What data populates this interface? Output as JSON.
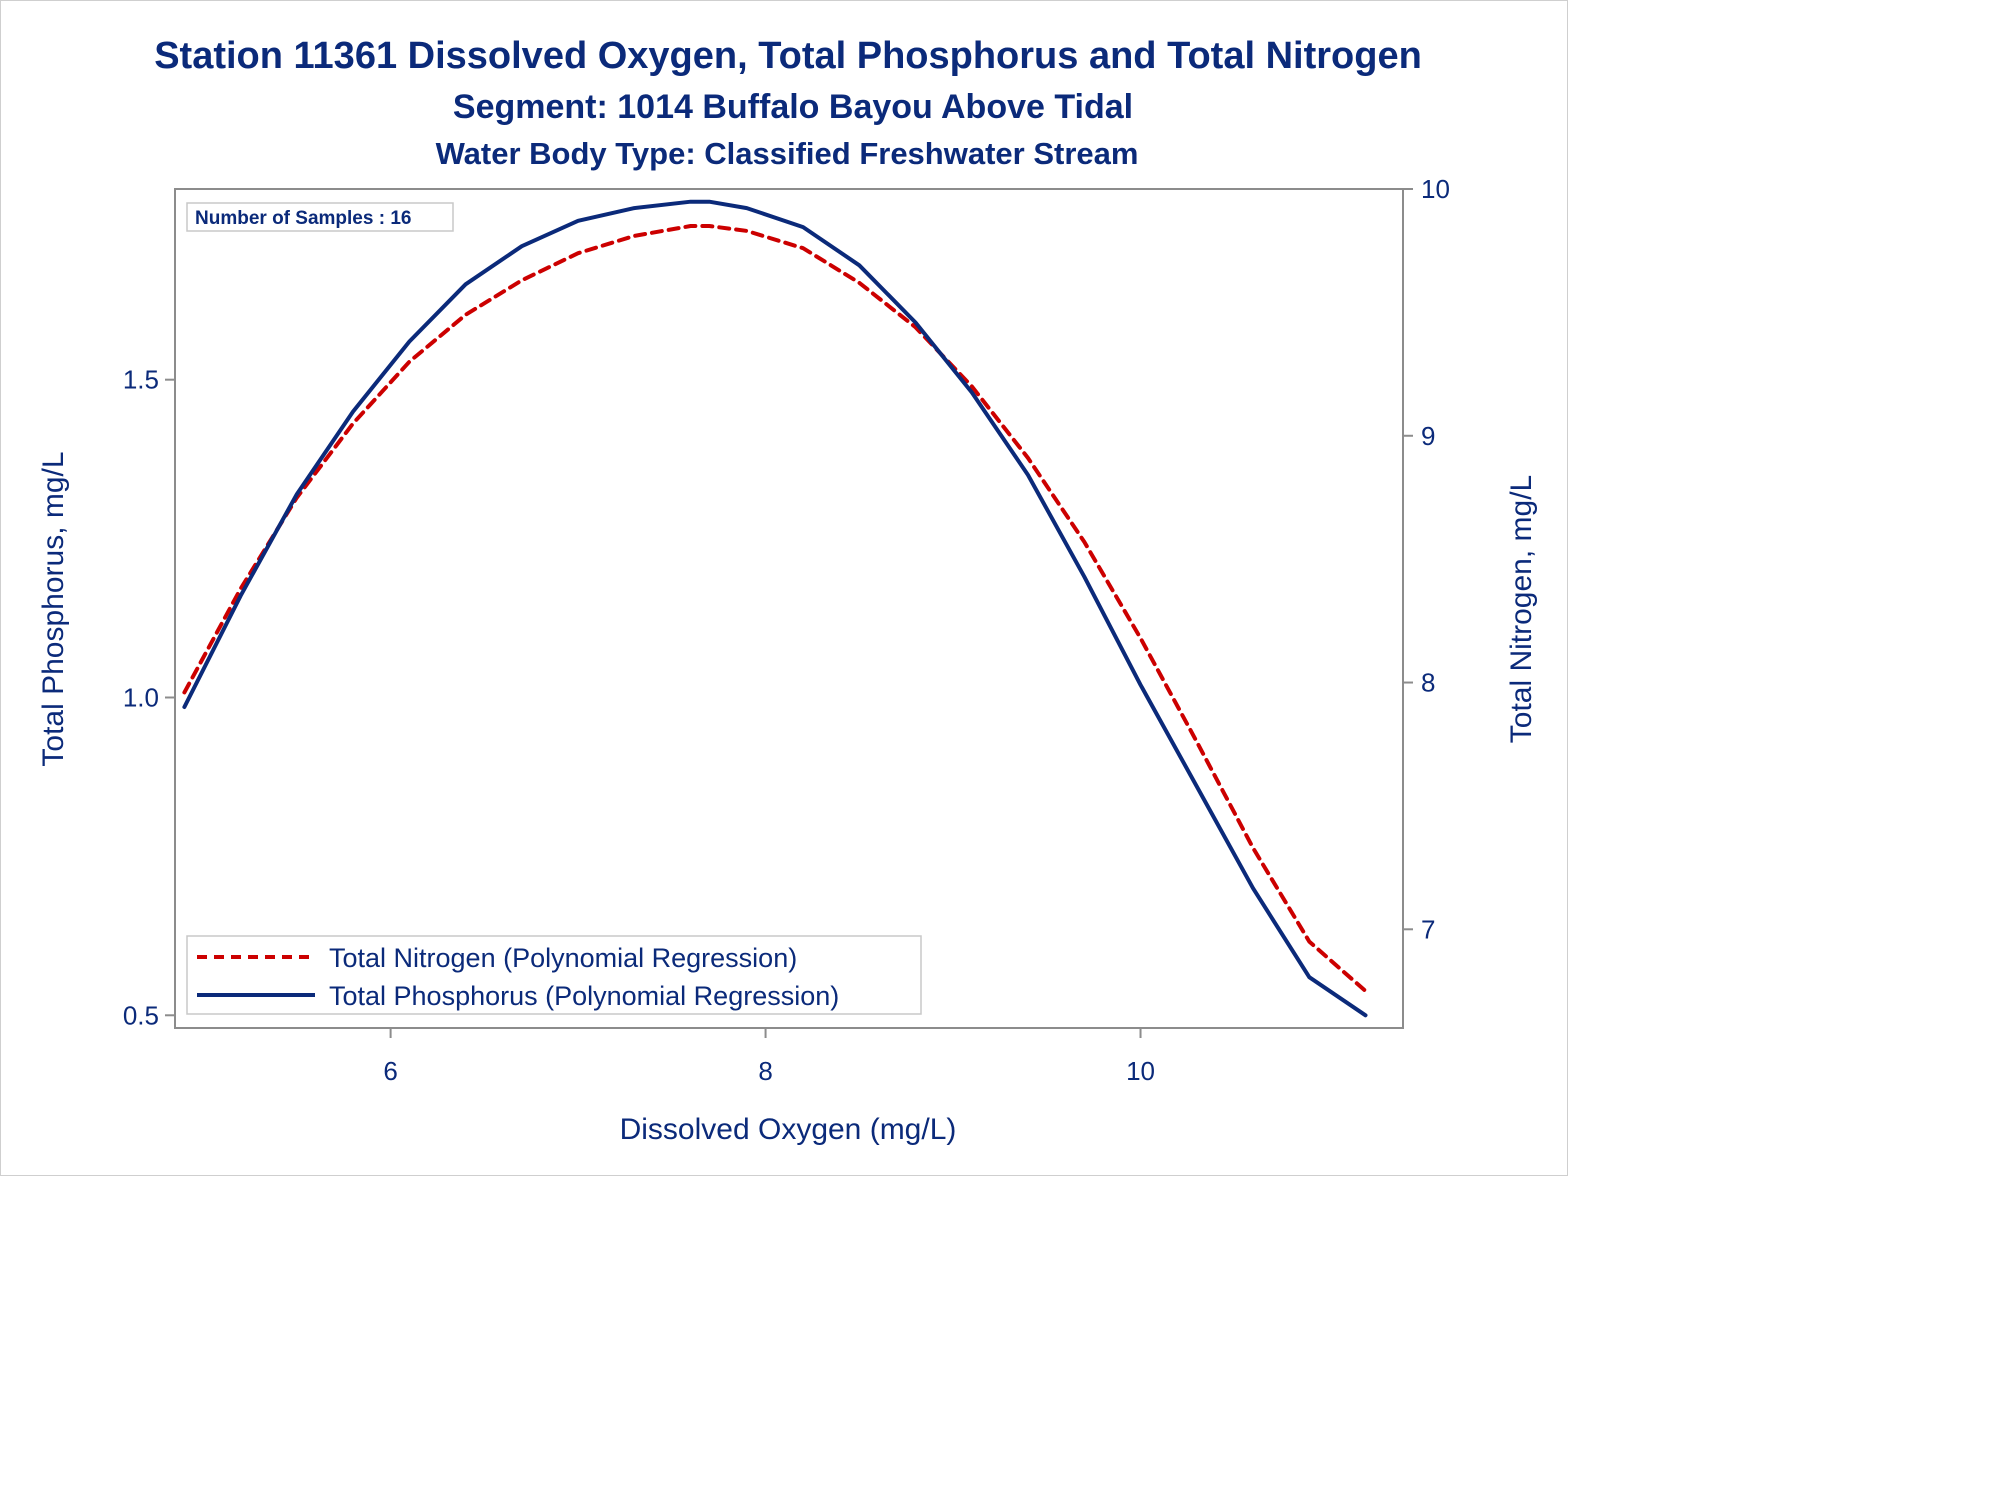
{
  "chart_data": {
    "type": "line",
    "title": "Station 11361  Dissolved Oxygen, Total Phosphorus and Total Nitrogen",
    "subtitle": "Segment: 1014  Buffalo Bayou Above Tidal",
    "subtitle2": "Water Body Type: Classified Freshwater Stream",
    "xlabel": "Dissolved Oxygen (mg/L)",
    "ylabel_left": "Total Phosphorus, mg/L",
    "ylabel_right": "Total Nitrogen, mg/L",
    "xlim": [
      4.85,
      11.4
    ],
    "ylim_left": [
      0.48,
      1.8
    ],
    "ylim_right": [
      6.6,
      10.0
    ],
    "x_ticks": [
      6,
      8,
      10
    ],
    "x_tick_labels": [
      "6",
      "8",
      "10"
    ],
    "y_left_ticks": [
      0.5,
      1.0,
      1.5
    ],
    "y_left_tick_labels": [
      "0.5",
      "1.0",
      "1.5"
    ],
    "y_right_ticks": [
      7,
      8,
      9,
      10
    ],
    "y_right_tick_labels": [
      "7",
      "8",
      "9",
      "10"
    ],
    "annotation": "Number of Samples : 16",
    "legend_position": "bottom-left",
    "grid": false,
    "series": [
      {
        "name": "Total Nitrogen (Polynomial Regression)",
        "axis": "right",
        "color": "#cc0000",
        "dash": "dashed",
        "x": [
          4.9,
          5.2,
          5.5,
          5.8,
          6.1,
          6.4,
          6.7,
          7.0,
          7.3,
          7.6,
          7.7,
          7.9,
          8.2,
          8.5,
          8.8,
          9.1,
          9.4,
          9.7,
          10.0,
          10.3,
          10.6,
          10.9,
          11.2
        ],
        "values": [
          7.96,
          8.38,
          8.75,
          9.05,
          9.3,
          9.49,
          9.63,
          9.74,
          9.81,
          9.85,
          9.85,
          9.83,
          9.76,
          9.62,
          9.44,
          9.2,
          8.91,
          8.57,
          8.18,
          7.76,
          7.33,
          6.95,
          6.75
        ]
      },
      {
        "name": "Total Phosphorus (Polynomial Regression)",
        "axis": "left",
        "color": "#0b2a7a",
        "dash": "solid",
        "x": [
          4.9,
          5.2,
          5.5,
          5.8,
          6.1,
          6.4,
          6.7,
          7.0,
          7.3,
          7.6,
          7.7,
          7.9,
          8.2,
          8.5,
          8.8,
          9.1,
          9.4,
          9.7,
          10.0,
          10.3,
          10.6,
          10.9,
          11.2
        ],
        "values": [
          0.985,
          1.16,
          1.32,
          1.45,
          1.56,
          1.65,
          1.71,
          1.75,
          1.77,
          1.78,
          1.78,
          1.77,
          1.74,
          1.68,
          1.59,
          1.48,
          1.35,
          1.19,
          1.02,
          0.86,
          0.7,
          0.56,
          0.5
        ]
      }
    ]
  },
  "colors": {
    "text": "#0b2a7a",
    "frame": "#8c8c8c",
    "nitrogen": "#cc0000",
    "phosphorus": "#0b2a7a"
  }
}
